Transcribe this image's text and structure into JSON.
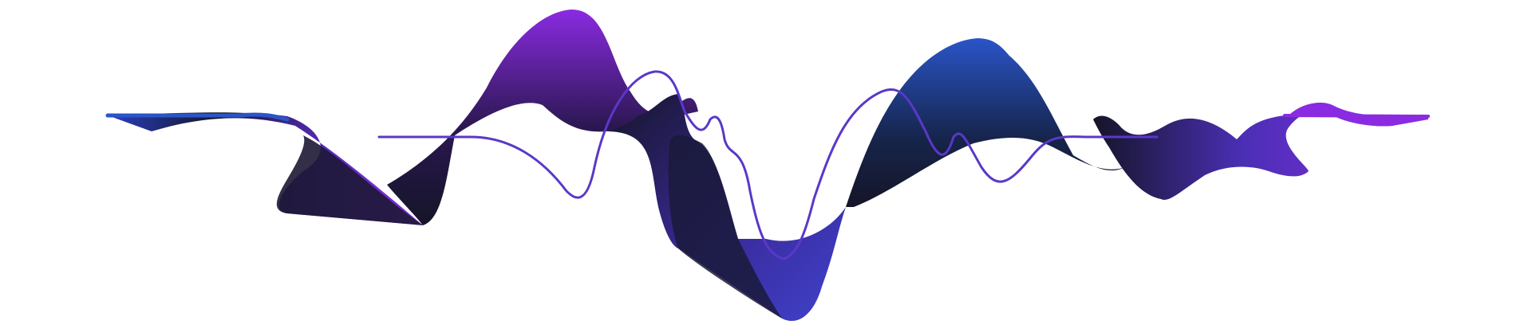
{
  "canvas": {
    "background": "#ffffff"
  },
  "palette": {
    "violet": "#8a2be2",
    "purple": "#7a28c8",
    "indigo": "#4b2fb6",
    "blue": "#2a55c8",
    "deep": "#151528"
  }
}
